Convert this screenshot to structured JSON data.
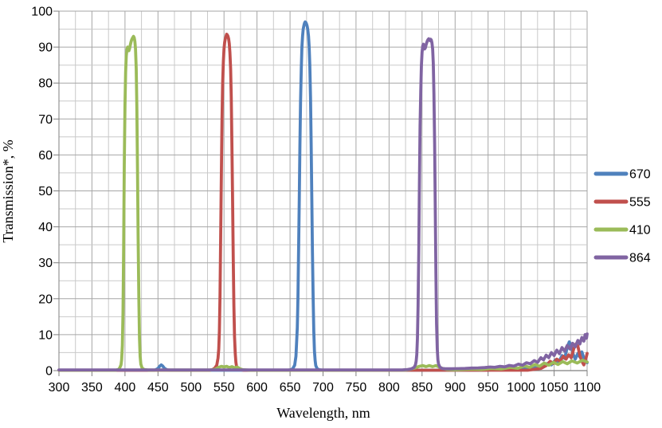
{
  "page": {
    "background": "#ffffff"
  },
  "chart_data": {
    "type": "line",
    "title": "",
    "xlabel": "Wavelength, nm",
    "ylabel": "Transmission*, %",
    "xlim": [
      300,
      1100
    ],
    "ylim": [
      0,
      100
    ],
    "x_ticks": [
      300,
      350,
      400,
      450,
      500,
      550,
      600,
      650,
      700,
      750,
      800,
      850,
      900,
      950,
      1000,
      1050,
      1100
    ],
    "y_ticks": [
      0,
      10,
      20,
      30,
      40,
      50,
      60,
      70,
      80,
      90,
      100
    ],
    "x_minor_step": 25,
    "y_minor_step": 5,
    "grid": "major-and-minor",
    "grid_major_color": "#a6a6a6",
    "grid_minor_color": "#c9c9c9",
    "axis_color": "#7f7f7f",
    "legend_position": "right-outside",
    "series": [
      {
        "name": "670",
        "color": "#4F81BD",
        "points": [
          [
            300,
            0.1
          ],
          [
            445,
            0.1
          ],
          [
            450,
            0.6
          ],
          [
            453,
            1.3
          ],
          [
            455,
            1.6
          ],
          [
            457,
            1.3
          ],
          [
            460,
            0.6
          ],
          [
            464,
            0.2
          ],
          [
            470,
            0.1
          ],
          [
            645,
            0.1
          ],
          [
            650,
            0.2
          ],
          [
            654,
            0.5
          ],
          [
            657,
            1.5
          ],
          [
            659,
            4
          ],
          [
            661,
            12
          ],
          [
            662,
            20
          ],
          [
            663,
            33
          ],
          [
            664,
            48
          ],
          [
            665,
            63
          ],
          [
            666,
            75
          ],
          [
            667,
            84
          ],
          [
            668,
            90
          ],
          [
            669,
            93
          ],
          [
            670,
            95
          ],
          [
            671,
            96
          ],
          [
            672,
            96.7
          ],
          [
            673,
            97
          ],
          [
            674,
            96.8
          ],
          [
            675,
            96.4
          ],
          [
            676,
            95.8
          ],
          [
            677,
            94.8
          ],
          [
            678,
            93
          ],
          [
            679,
            90
          ],
          [
            680,
            85
          ],
          [
            681,
            76
          ],
          [
            682,
            63
          ],
          [
            683,
            48
          ],
          [
            684,
            33
          ],
          [
            685,
            20
          ],
          [
            686,
            11
          ],
          [
            687,
            5.5
          ],
          [
            688,
            2.8
          ],
          [
            689,
            1.4
          ],
          [
            691,
            0.6
          ],
          [
            694,
            0.25
          ],
          [
            700,
            0.1
          ],
          [
            940,
            0.1
          ],
          [
            980,
            0.3
          ],
          [
            1010,
            0.6
          ],
          [
            1030,
            1.2
          ],
          [
            1040,
            2
          ],
          [
            1046,
            1.6
          ],
          [
            1052,
            3
          ],
          [
            1057,
            2.4
          ],
          [
            1062,
            4.2
          ],
          [
            1066,
            3.4
          ],
          [
            1070,
            6.5
          ],
          [
            1073,
            8
          ],
          [
            1076,
            6.8
          ],
          [
            1079,
            4.5
          ],
          [
            1082,
            3.2
          ],
          [
            1086,
            4.8
          ],
          [
            1089,
            3.8
          ],
          [
            1092,
            5.2
          ],
          [
            1095,
            3.5
          ],
          [
            1098,
            2.8
          ],
          [
            1100,
            2.2
          ]
        ]
      },
      {
        "name": "555",
        "color": "#C0504D",
        "points": [
          [
            300,
            0.1
          ],
          [
            528,
            0.1
          ],
          [
            533,
            0.3
          ],
          [
            536,
            0.7
          ],
          [
            539,
            1.5
          ],
          [
            541,
            3.5
          ],
          [
            542,
            6
          ],
          [
            543,
            11
          ],
          [
            544,
            21
          ],
          [
            545,
            37
          ],
          [
            546,
            55
          ],
          [
            547,
            70
          ],
          [
            548,
            80
          ],
          [
            549,
            86
          ],
          [
            550,
            89.5
          ],
          [
            551,
            91.3
          ],
          [
            552,
            92.3
          ],
          [
            553,
            93
          ],
          [
            554,
            93.6
          ],
          [
            555,
            93.4
          ],
          [
            556,
            93
          ],
          [
            557,
            92.3
          ],
          [
            558,
            91
          ],
          [
            559,
            88.5
          ],
          [
            560,
            84
          ],
          [
            561,
            76
          ],
          [
            562,
            63
          ],
          [
            563,
            47
          ],
          [
            564,
            31
          ],
          [
            565,
            18
          ],
          [
            566,
            9.5
          ],
          [
            567,
            4.8
          ],
          [
            568,
            2.4
          ],
          [
            569,
            1.2
          ],
          [
            571,
            0.6
          ],
          [
            574,
            0.25
          ],
          [
            580,
            0.1
          ],
          [
            1010,
            0.1
          ],
          [
            1030,
            0.6
          ],
          [
            1038,
            1.4
          ],
          [
            1044,
            2.6
          ],
          [
            1049,
            2
          ],
          [
            1054,
            3.2
          ],
          [
            1059,
            2.6
          ],
          [
            1064,
            4
          ],
          [
            1068,
            3.2
          ],
          [
            1072,
            4.4
          ],
          [
            1076,
            3.6
          ],
          [
            1080,
            6.2
          ],
          [
            1083,
            7.4
          ],
          [
            1086,
            6.8
          ],
          [
            1089,
            4.2
          ],
          [
            1092,
            2.6
          ],
          [
            1095,
            1.6
          ],
          [
            1098,
            3.2
          ],
          [
            1100,
            4.8
          ]
        ]
      },
      {
        "name": "410",
        "color": "#9BBB59",
        "points": [
          [
            300,
            0.1
          ],
          [
            386,
            0.1
          ],
          [
            390,
            0.3
          ],
          [
            392,
            0.7
          ],
          [
            394,
            1.6
          ],
          [
            395,
            3
          ],
          [
            396,
            7
          ],
          [
            397,
            16
          ],
          [
            398,
            34
          ],
          [
            399,
            57
          ],
          [
            400,
            74
          ],
          [
            401,
            83
          ],
          [
            402,
            87.5
          ],
          [
            403,
            89.5
          ],
          [
            404,
            90
          ],
          [
            405,
            89.3
          ],
          [
            406,
            89
          ],
          [
            407,
            89.6
          ],
          [
            408,
            90.5
          ],
          [
            409,
            91.3
          ],
          [
            410,
            92
          ],
          [
            411,
            92.4
          ],
          [
            412,
            92.7
          ],
          [
            413,
            93
          ],
          [
            414,
            92.6
          ],
          [
            415,
            91.6
          ],
          [
            416,
            89.5
          ],
          [
            417,
            84
          ],
          [
            418,
            73
          ],
          [
            419,
            56
          ],
          [
            420,
            37
          ],
          [
            421,
            20
          ],
          [
            422,
            9
          ],
          [
            423,
            4
          ],
          [
            424,
            1.8
          ],
          [
            426,
            0.7
          ],
          [
            429,
            0.3
          ],
          [
            435,
            0.15
          ],
          [
            530,
            0.15
          ],
          [
            537,
            0.4
          ],
          [
            542,
            0.9
          ],
          [
            546,
            1.2
          ],
          [
            550,
            1
          ],
          [
            554,
            1.2
          ],
          [
            558,
            0.85
          ],
          [
            562,
            1.1
          ],
          [
            566,
            0.8
          ],
          [
            570,
            1
          ],
          [
            574,
            0.5
          ],
          [
            579,
            0.25
          ],
          [
            590,
            0.1
          ],
          [
            825,
            0.15
          ],
          [
            833,
            0.4
          ],
          [
            840,
            0.8
          ],
          [
            846,
            1.2
          ],
          [
            851,
            1.4
          ],
          [
            856,
            1.1
          ],
          [
            861,
            1.4
          ],
          [
            866,
            1.1
          ],
          [
            871,
            1.4
          ],
          [
            876,
            1
          ],
          [
            881,
            0.6
          ],
          [
            888,
            0.3
          ],
          [
            900,
            0.2
          ],
          [
            925,
            0.4
          ],
          [
            940,
            0.3
          ],
          [
            955,
            0.6
          ],
          [
            970,
            0.45
          ],
          [
            984,
            0.9
          ],
          [
            995,
            0.65
          ],
          [
            1005,
            1.3
          ],
          [
            1013,
            0.9
          ],
          [
            1021,
            1.7
          ],
          [
            1028,
            1.2
          ],
          [
            1035,
            2.1
          ],
          [
            1042,
            1.5
          ],
          [
            1049,
            2.3
          ],
          [
            1056,
            1.7
          ],
          [
            1063,
            2.5
          ],
          [
            1070,
            1.9
          ],
          [
            1077,
            2.7
          ],
          [
            1085,
            2.1
          ],
          [
            1093,
            2.9
          ],
          [
            1100,
            2.4
          ]
        ]
      },
      {
        "name": "864",
        "color": "#8064A2",
        "points": [
          [
            300,
            0.2
          ],
          [
            820,
            0.2
          ],
          [
            828,
            0.3
          ],
          [
            834,
            0.5
          ],
          [
            838,
            0.9
          ],
          [
            840,
            1.6
          ],
          [
            841,
            2.6
          ],
          [
            842,
            4.5
          ],
          [
            843,
            9
          ],
          [
            844,
            18
          ],
          [
            845,
            33
          ],
          [
            846,
            52
          ],
          [
            847,
            68
          ],
          [
            848,
            78
          ],
          [
            849,
            85
          ],
          [
            850,
            88.5
          ],
          [
            851,
            90.3
          ],
          [
            852,
            90.8
          ],
          [
            853,
            90.2
          ],
          [
            854,
            89.5
          ],
          [
            855,
            89.8
          ],
          [
            856,
            90.6
          ],
          [
            857,
            91.2
          ],
          [
            858,
            91.7
          ],
          [
            859,
            92.1
          ],
          [
            860,
            92.3
          ],
          [
            861,
            92
          ],
          [
            862,
            91.8
          ],
          [
            863,
            92.2
          ],
          [
            864,
            92
          ],
          [
            865,
            91.2
          ],
          [
            866,
            89.5
          ],
          [
            867,
            85.5
          ],
          [
            868,
            77
          ],
          [
            869,
            63
          ],
          [
            870,
            45
          ],
          [
            871,
            27
          ],
          [
            872,
            13
          ],
          [
            873,
            6
          ],
          [
            874,
            3
          ],
          [
            875,
            1.8
          ],
          [
            877,
            1
          ],
          [
            880,
            0.6
          ],
          [
            885,
            0.5
          ],
          [
            895,
            0.5
          ],
          [
            905,
            0.55
          ],
          [
            915,
            0.6
          ],
          [
            925,
            0.7
          ],
          [
            935,
            0.75
          ],
          [
            945,
            0.85
          ],
          [
            953,
            1
          ],
          [
            960,
            0.9
          ],
          [
            968,
            1.2
          ],
          [
            975,
            1.05
          ],
          [
            982,
            1.45
          ],
          [
            989,
            1.25
          ],
          [
            996,
            1.8
          ],
          [
            1002,
            1.5
          ],
          [
            1008,
            2.2
          ],
          [
            1014,
            1.9
          ],
          [
            1020,
            2.8
          ],
          [
            1025,
            2.3
          ],
          [
            1030,
            3.6
          ],
          [
            1034,
            3
          ],
          [
            1038,
            4.3
          ],
          [
            1042,
            3.6
          ],
          [
            1046,
            5
          ],
          [
            1050,
            4.2
          ],
          [
            1054,
            5.7
          ],
          [
            1058,
            4.7
          ],
          [
            1062,
            6.4
          ],
          [
            1066,
            5.4
          ],
          [
            1070,
            7
          ],
          [
            1074,
            6
          ],
          [
            1078,
            7.6
          ],
          [
            1082,
            6.6
          ],
          [
            1086,
            8.4
          ],
          [
            1089,
            7.4
          ],
          [
            1092,
            9.2
          ],
          [
            1095,
            8.2
          ],
          [
            1097,
            10
          ],
          [
            1099,
            9
          ],
          [
            1100,
            10.2
          ]
        ]
      }
    ]
  }
}
